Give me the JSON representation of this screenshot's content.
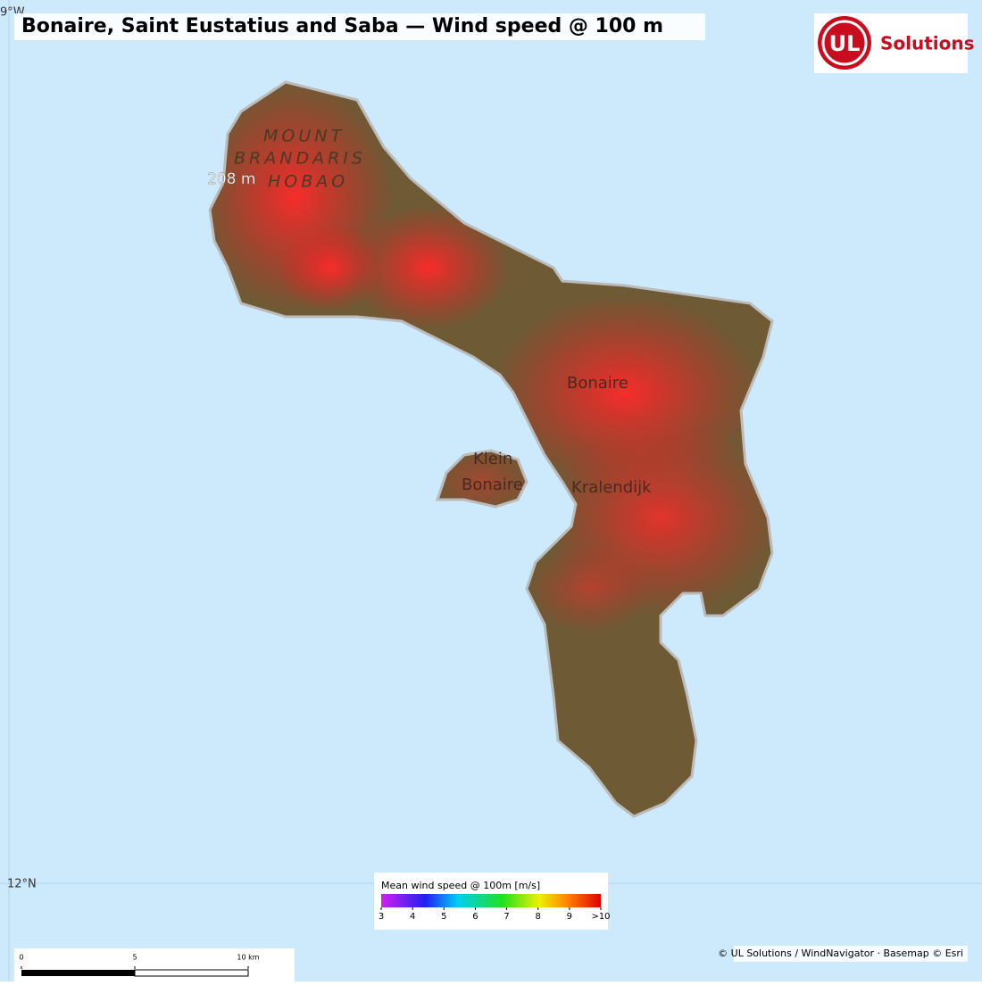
{
  "header": {
    "title": "Bonaire, Saint Eustatius and Saba — Wind speed @ 100 m"
  },
  "logo": {
    "mark": "UL",
    "text": "Solutions"
  },
  "graticule": {
    "longitude": "9°W",
    "latitude": "12°N"
  },
  "map_labels": {
    "mount": "MOUNT",
    "brandaris": "BRANDARIS",
    "elevation": "208 m",
    "hobao": "HOBAO",
    "island": "Bonaire",
    "klein_1": "Klein",
    "klein_2": "Bonaire",
    "town": "Kralendijk"
  },
  "legend": {
    "title": "Mean wind speed @ 100m  [m/s]",
    "range": [
      3,
      10
    ],
    "ticks": [
      3,
      4,
      5,
      6,
      7,
      8,
      9,
      {
        "value": 10,
        "label": ">10"
      }
    ]
  },
  "scale_bar": {
    "range": [
      0,
      10
    ],
    "ticks": [
      0,
      5,
      {
        "value": 10,
        "label": "10 km"
      }
    ]
  },
  "attribution": "© UL Solutions / WindNavigator · Basemap © Esri"
}
